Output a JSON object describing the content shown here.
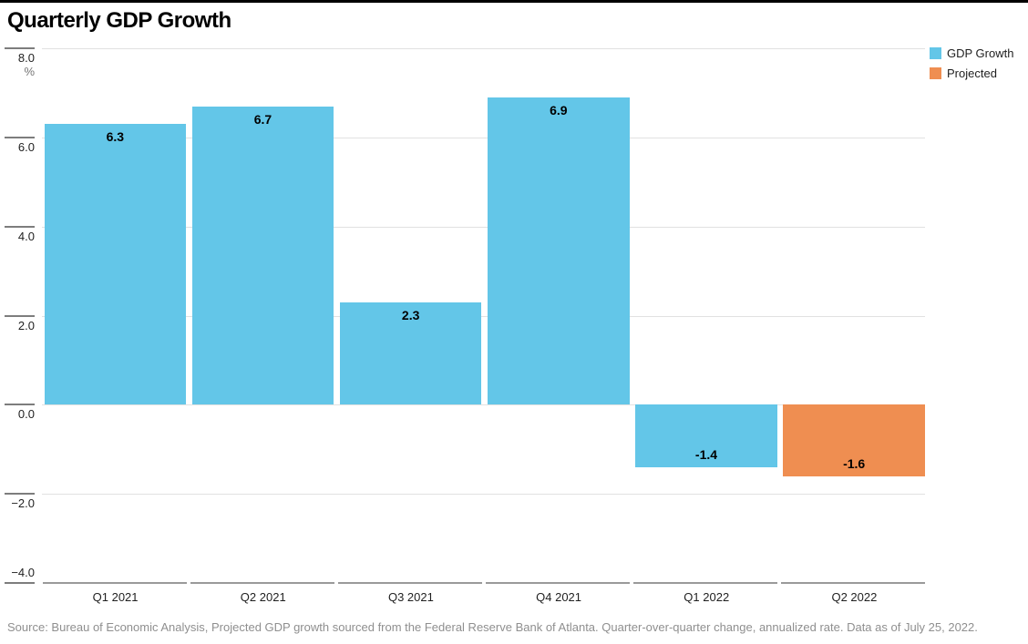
{
  "header": {
    "title": "Quarterly GDP Growth"
  },
  "footer": {
    "source": "Source: Bureau of Economic Analysis, Projected GDP growth sourced from the Federal Reserve Bank of Atlanta. Quarter-over-quarter change, annualized rate. Data as of July 25, 2022."
  },
  "chart_data": {
    "type": "bar",
    "title": "Quarterly GDP Growth",
    "unit_label": "%",
    "categories": [
      "Q1 2021",
      "Q2 2021",
      "Q3 2021",
      "Q4 2021",
      "Q1 2022",
      "Q2 2022"
    ],
    "series": [
      {
        "name": "GDP Growth",
        "color": "#63C6E8",
        "values": [
          6.3,
          6.7,
          2.3,
          6.9,
          -1.4,
          null
        ]
      },
      {
        "name": "Projected",
        "color": "#EF8E51",
        "values": [
          null,
          null,
          null,
          null,
          null,
          -1.6
        ]
      }
    ],
    "bar_value_labels": [
      "6.3",
      "6.7",
      "2.3",
      "6.9",
      "-1.4",
      "-1.6"
    ],
    "ylim": [
      -4.0,
      8.0
    ],
    "yticks": [
      8.0,
      6.0,
      4.0,
      2.0,
      0.0,
      -2.0,
      -4.0
    ],
    "ytick_labels": [
      "8.0",
      "6.0",
      "4.0",
      "2.0",
      "0.0",
      "−2.0",
      "−4.0"
    ],
    "grid": true,
    "legend_position": "top-right",
    "legend": [
      {
        "label": "GDP Growth",
        "color": "#63C6E8"
      },
      {
        "label": "Projected",
        "color": "#EF8E51"
      }
    ]
  }
}
